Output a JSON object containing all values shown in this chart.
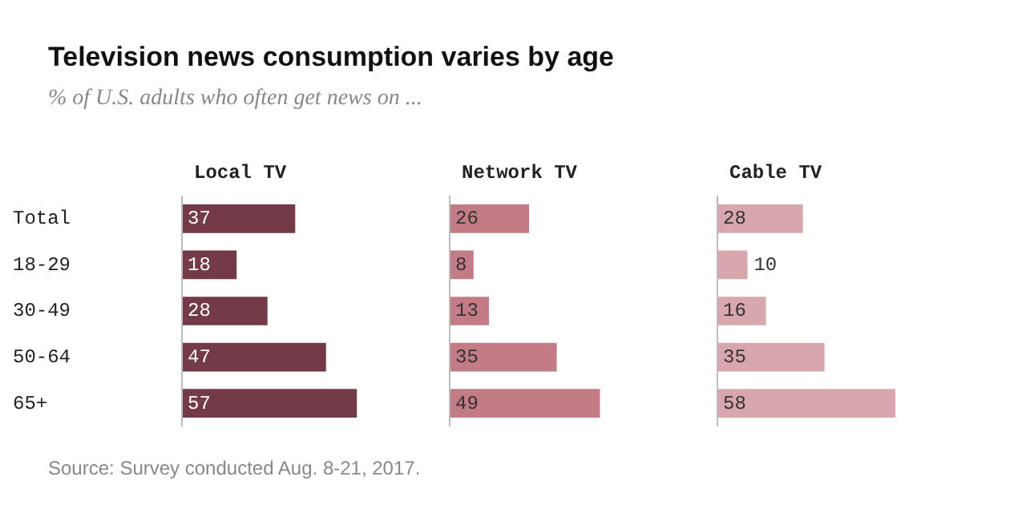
{
  "chart_data": [
    {
      "type": "bar",
      "orientation": "horizontal",
      "title": "Television news consumption varies by age",
      "subtitle": "% of U.S. adults who often get news on ...",
      "categories": [
        "Total",
        "18-29",
        "30-49",
        "50-64",
        "65+"
      ],
      "series": [
        {
          "name": "Local TV",
          "color": "#743a48",
          "values": [
            37,
            18,
            28,
            47,
            57
          ]
        }
      ],
      "data_labels": true,
      "tick_labels": "y",
      "annotations": [
        "Source: Survey conducted Aug. 8-21, 2017."
      ]
    },
    {
      "type": "bar",
      "orientation": "horizontal",
      "categories": [
        null,
        null,
        null,
        null,
        null
      ],
      "series": [
        {
          "name": "Network TV",
          "color": "#c37c85",
          "values": [
            26,
            8,
            13,
            35,
            49
          ]
        }
      ],
      "data_labels": true,
      "tick_labels": false
    },
    {
      "type": "bar",
      "orientation": "horizontal",
      "categories": [
        null,
        null,
        null,
        null,
        null
      ],
      "series": [
        {
          "name": "Cable TV",
          "color": "#d8a7ad",
          "values": [
            28,
            10,
            16,
            35,
            58
          ]
        }
      ],
      "data_labels": true,
      "tick_labels": false
    }
  ]
}
